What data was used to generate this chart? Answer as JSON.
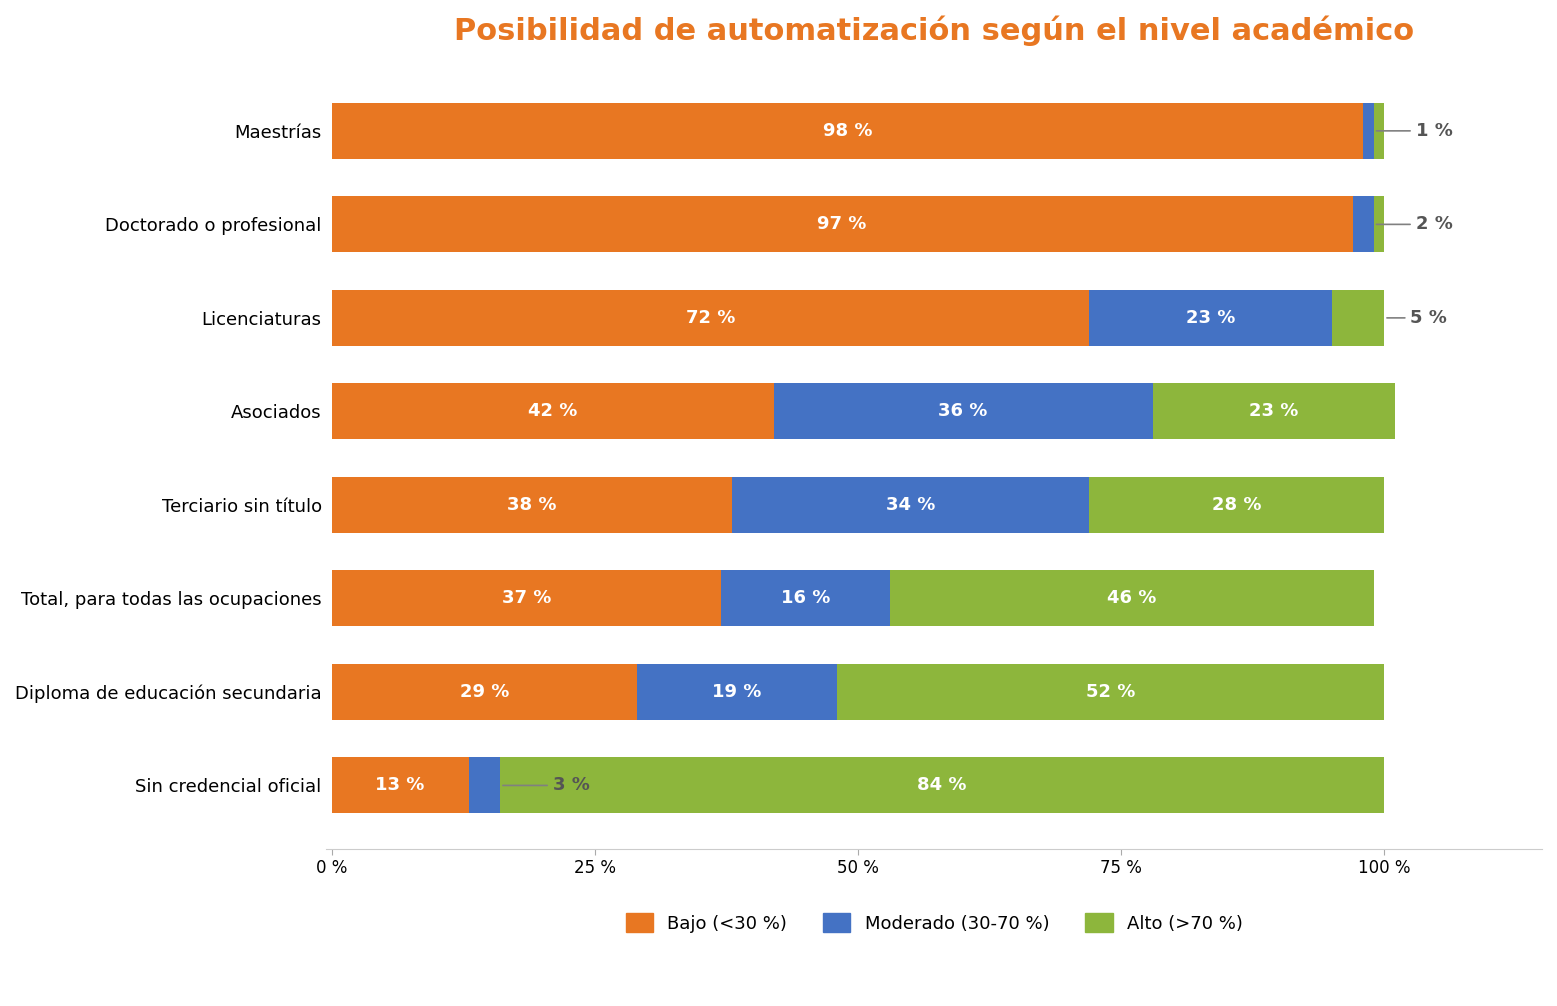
{
  "title": "Posibilidad de automatización según el nivel académico",
  "title_color": "#E87722",
  "categories": [
    "Sin credencial oficial",
    "Diploma de educación secundaria",
    "Total, para todas las ocupaciones",
    "Terciario sin título",
    "Asociados",
    "Licenciaturas",
    "Doctorado o profesional",
    "Maestrías"
  ],
  "bajo": [
    13,
    29,
    37,
    38,
    42,
    72,
    97,
    98
  ],
  "moderado": [
    3,
    19,
    16,
    34,
    36,
    23,
    2,
    1
  ],
  "alto": [
    84,
    52,
    46,
    28,
    23,
    5,
    1,
    1
  ],
  "color_bajo": "#E87722",
  "color_moderado": "#4472C4",
  "color_alto": "#8DB63C",
  "legend_labels": [
    "Bajo (<30 %)",
    "Moderado (30-70 %)",
    "Alto (>70 %)"
  ],
  "xlabel_ticks": [
    0,
    25,
    50,
    75,
    100
  ],
  "xlabel_tick_labels": [
    "0 %",
    "25 %",
    "50 %",
    "75 %",
    "100 %"
  ],
  "background_color": "#FFFFFF",
  "bar_height": 0.6,
  "annotation_color_outside": "#555555",
  "annotation_color_inside": "#FFFFFF"
}
